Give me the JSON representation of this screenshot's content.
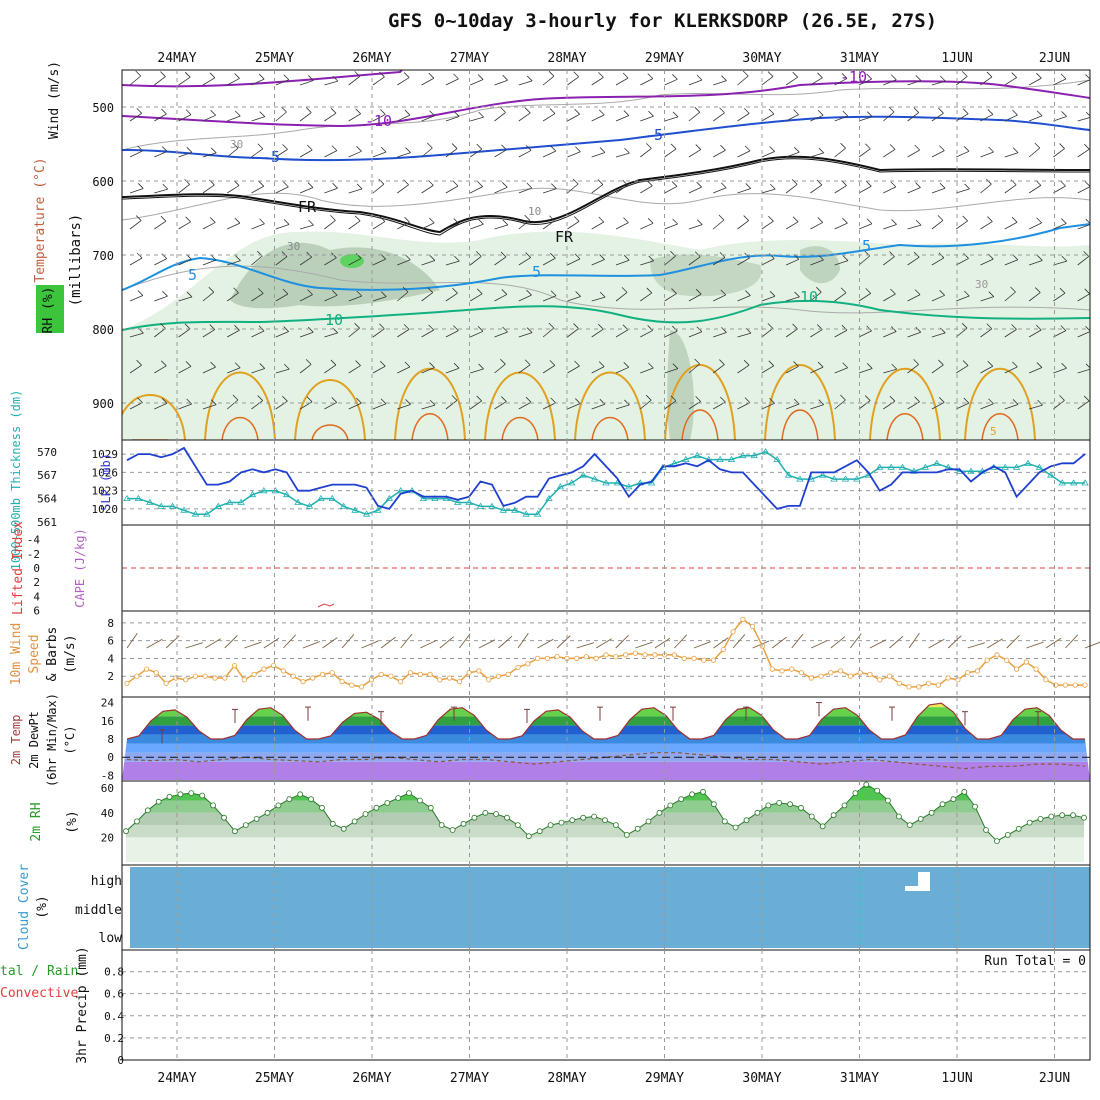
{
  "title": "GFS 0~10day 3-hourly for KLERKSDORP (26.5E, 27S)",
  "dates": [
    "24MAY",
    "25MAY",
    "26MAY",
    "27MAY",
    "28MAY",
    "29MAY",
    "30MAY",
    "31MAY",
    "1JUN",
    "2JUN"
  ],
  "colors": {
    "rh_green": "#cfe8cf",
    "rh_dark": "#9bb59b",
    "temp_purple": "#8a1fb0",
    "temp_blue": "#1f4fd0",
    "temp_cyan": "#1e90e0",
    "temp_teal": "#10b080",
    "temp_orange": "#e0a020",
    "slp": "#1f3fd0",
    "thickness": "#20b0b0",
    "wind10m": "#e8a040",
    "cloud": "#6aaed6",
    "rh2m": "#3cb043"
  },
  "labels": {
    "upper_ylabel": "(millibars)",
    "upper_legend": [
      "Wind (m/s)",
      "Temperature (°C)",
      "RH (%)"
    ],
    "slp_label": "SLP (mb)",
    "thickness_label": "1000-500mb Thickness (dm)",
    "cape_label": "CAPE (J/kg)",
    "li_label": "Lifted Index",
    "wind10_label": [
      "10m Wind",
      "Speed",
      "& Barbs",
      "(m/s)"
    ],
    "temp2m_label": [
      "2m Temp",
      "2m DewPt",
      "(6hr Min/Max)",
      "(°C)"
    ],
    "rh2m_label": [
      "2m RH",
      "(%)"
    ],
    "cloud_label": [
      "Cloud Cover",
      "(%)"
    ],
    "cloud_levels": [
      "high",
      "middle",
      "low"
    ],
    "precip_label": [
      "tal / Rain",
      "Convective",
      "3hr Precip (mm)"
    ],
    "run_total": "Run Total = 0"
  },
  "chart_data": [
    {
      "type": "heatmap",
      "panel": "upper-air",
      "y_ticks": [
        500,
        600,
        700,
        800,
        900
      ],
      "ylim": [
        450,
        950
      ],
      "contour_labels": [
        "-10",
        "-10",
        "-5",
        "-5",
        "FR",
        "FR",
        "5",
        "5",
        "5",
        "10",
        "10",
        "10",
        "30",
        "30",
        "30",
        "5"
      ]
    },
    {
      "type": "line",
      "panel": "slp-thickness",
      "slp_ticks": [
        1020,
        1023,
        1026,
        1029
      ],
      "thickness_ticks": [
        561,
        564,
        567,
        570
      ],
      "slp": [
        1028,
        1029,
        1029,
        1028.5,
        1029,
        1030,
        1027,
        1024,
        1024,
        1024.5,
        1026,
        1026.5,
        1026,
        1026.5,
        1026,
        1023,
        1023,
        1023.5,
        1024,
        1024,
        1024,
        1023.5,
        1020.5,
        1020,
        1022.5,
        1023,
        1022,
        1022,
        1022,
        1021.5,
        1022,
        1024.5,
        1024,
        1020.5,
        1021,
        1022,
        1022,
        1025,
        1025.5,
        1026,
        1027,
        1029,
        1027,
        1025,
        1022,
        1024,
        1024.5,
        1027,
        1027,
        1027.5,
        1027,
        1028,
        1026.5,
        1026,
        1026,
        1024,
        1022,
        1020,
        1020.5,
        1020.5,
        1026,
        1026,
        1026,
        1027,
        1028,
        1026,
        1023,
        1024,
        1026,
        1026,
        1026,
        1026,
        1026.5,
        1026.5,
        1024.5,
        1026,
        1027,
        1026,
        1022,
        1024,
        1026,
        1027,
        1027.5,
        1027.5,
        1029
      ],
      "thickness": [
        564,
        564,
        563.5,
        563,
        563,
        562.5,
        562,
        562,
        563,
        563.5,
        563.5,
        564.5,
        565,
        565,
        564.5,
        563.5,
        563,
        564,
        564,
        563,
        562.5,
        562,
        562.5,
        564,
        565,
        565,
        564,
        564,
        564,
        563.5,
        563.5,
        563,
        563,
        562.5,
        562.5,
        562,
        562,
        564,
        565.5,
        566,
        567,
        566.5,
        566,
        566,
        565.5,
        566,
        566,
        568,
        568.5,
        569,
        569.5,
        569,
        569,
        569,
        569.5,
        569.5,
        570,
        569,
        567,
        566.5,
        566.5,
        567,
        566.5,
        566.5,
        566.5,
        567,
        568,
        568,
        568,
        567.5,
        568,
        568.5,
        568,
        567.5,
        567.5,
        567.5,
        568,
        568,
        568,
        568.5,
        568,
        567,
        566,
        566,
        566
      ]
    },
    {
      "type": "line",
      "panel": "cape-lifted-index",
      "li_ticks": [
        -4,
        -2,
        0,
        2,
        4,
        6
      ],
      "li_zero": 0
    },
    {
      "type": "line",
      "panel": "10m-wind",
      "y_ticks": [
        2,
        4,
        6,
        8
      ],
      "ylim": [
        0,
        9
      ],
      "wind_speed": [
        1.2,
        2,
        2.8,
        2.4,
        1.2,
        1.8,
        1.6,
        2,
        2,
        1.8,
        1.8,
        3.2,
        1.6,
        2.2,
        2.8,
        3.2,
        2.6,
        2,
        1.4,
        1.8,
        2.2,
        2.4,
        1.4,
        1,
        0.8,
        1.6,
        2.2,
        2,
        1.4,
        2.4,
        2.2,
        2.2,
        1.6,
        1.8,
        1.4,
        2.4,
        2.6,
        1.6,
        2,
        2.2,
        3,
        3.4,
        4,
        4,
        4.2,
        4,
        4,
        4.2,
        4,
        4.4,
        4.2,
        4.4,
        4.6,
        4.4,
        4.4,
        4.4,
        4.4,
        4,
        4,
        3.8,
        3.8,
        5,
        7,
        8.4,
        7.6,
        5.4,
        2.8,
        2.6,
        2.8,
        2.4,
        1.8,
        2,
        2.4,
        2.6,
        2,
        2.4,
        2.2,
        1.6,
        2,
        1.2,
        0.8,
        0.8,
        1.2,
        1,
        1.8,
        1.6,
        2.4,
        2.6,
        3.8,
        4.4,
        3.8,
        2.8,
        3.6,
        2.8,
        1.6,
        1,
        1,
        1,
        1
      ]
    },
    {
      "type": "area",
      "panel": "2m-temp",
      "y_ticks": [
        -8,
        0,
        8,
        16,
        24
      ],
      "ylim": [
        -10,
        26
      ],
      "temp_max": [
        12,
        21,
        22,
        20,
        22,
        21,
        22,
        22,
        22,
        24,
        22,
        20,
        20
      ],
      "temp_min": [
        8,
        8,
        8,
        8,
        8,
        8,
        8,
        8,
        8,
        8,
        8,
        8,
        8
      ],
      "dewpoint": [
        -1,
        -1.5,
        -1,
        -2,
        -1,
        0,
        -1,
        -1.5,
        -2,
        -1,
        -1,
        0,
        -1,
        -2,
        -1,
        -1,
        -2,
        -3,
        -2,
        -1,
        0,
        1,
        2,
        2,
        1,
        0,
        -1,
        -1,
        -2,
        -3,
        -2,
        -1,
        -2,
        -3,
        -4,
        -5,
        -4,
        -4,
        -3,
        -3,
        -4
      ]
    },
    {
      "type": "area",
      "panel": "2m-rh",
      "y_ticks": [
        20,
        40,
        60
      ],
      "ylim": [
        0,
        65
      ],
      "rh": [
        25,
        33,
        42,
        49,
        53,
        55,
        56,
        54,
        46,
        36,
        25,
        30,
        35,
        40,
        46,
        51,
        55,
        51,
        44,
        31,
        27,
        33,
        39,
        44,
        48,
        52,
        56,
        50,
        44,
        30,
        26,
        31,
        36,
        40,
        39,
        36,
        30,
        21,
        25,
        30,
        32,
        34,
        36,
        37,
        34,
        30,
        22,
        27,
        33,
        40,
        46,
        51,
        55,
        57,
        47,
        33,
        28,
        34,
        40,
        46,
        48,
        47,
        44,
        37,
        29,
        38,
        46,
        56,
        63,
        58,
        50,
        37,
        30,
        35,
        40,
        47,
        51,
        57,
        45,
        26,
        17,
        22,
        27,
        32,
        35,
        37,
        38,
        38,
        36
      ]
    },
    {
      "type": "bar",
      "panel": "cloud-cover",
      "levels": [
        "high",
        "middle",
        "low"
      ]
    },
    {
      "type": "bar",
      "panel": "3hr-precip",
      "y_ticks": [
        0,
        0.2,
        0.4,
        0.6,
        0.8
      ],
      "ylim": [
        0,
        0.95
      ],
      "run_total": 0
    }
  ]
}
